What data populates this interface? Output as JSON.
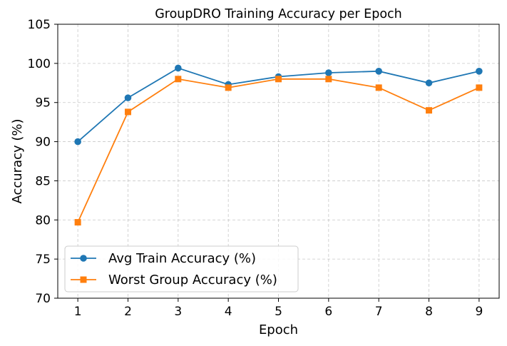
{
  "chart_data": {
    "type": "line",
    "title": "GroupDRO Training Accuracy per Epoch",
    "xlabel": "Epoch",
    "ylabel": "Accuracy (%)",
    "x": [
      1,
      2,
      3,
      4,
      5,
      6,
      7,
      8,
      9
    ],
    "xlim": [
      0.6,
      9.4
    ],
    "ylim": [
      70,
      105
    ],
    "xticks": [
      1,
      2,
      3,
      4,
      5,
      6,
      7,
      8,
      9
    ],
    "yticks": [
      70,
      75,
      80,
      85,
      90,
      95,
      100,
      105
    ],
    "grid": true,
    "legend_position": "lower-left",
    "series": [
      {
        "name": "Avg Train Accuracy (%)",
        "color": "#1f77b4",
        "marker": "circle",
        "values": [
          90.0,
          95.6,
          99.4,
          97.3,
          98.3,
          98.8,
          99.0,
          97.5,
          99.0
        ]
      },
      {
        "name": "Worst Group Accuracy (%)",
        "color": "#ff7f0e",
        "marker": "square",
        "values": [
          79.7,
          93.8,
          98.0,
          96.9,
          98.0,
          98.0,
          96.9,
          94.0,
          96.9
        ]
      }
    ]
  }
}
